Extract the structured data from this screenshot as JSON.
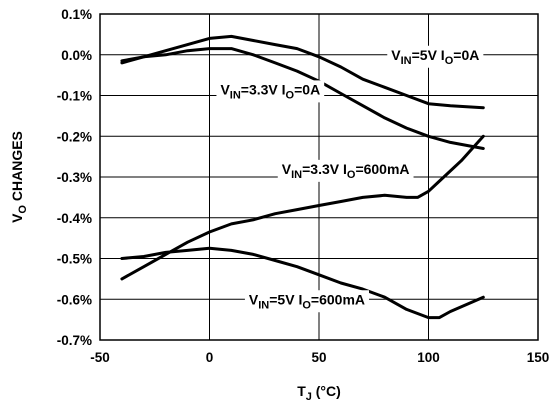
{
  "chart_data": {
    "type": "line",
    "title": "",
    "xlabel": {
      "main": "T",
      "sub": "J",
      "rest": " (°C)"
    },
    "ylabel": {
      "pre": "V",
      "sub": "O",
      "rest": " CHANGES"
    },
    "xlim": [
      -50,
      150
    ],
    "ylim": [
      -0.7,
      0.1
    ],
    "grid": true,
    "legend": "none",
    "x_ticks": [
      {
        "value": -50,
        "label": "-50"
      },
      {
        "value": 0,
        "label": "0"
      },
      {
        "value": 50,
        "label": "50"
      },
      {
        "value": 100,
        "label": "100"
      },
      {
        "value": 150,
        "label": "150"
      }
    ],
    "y_ticks": [
      {
        "value": 0.1,
        "label": "0.1%"
      },
      {
        "value": 0.0,
        "label": "0.0%"
      },
      {
        "value": -0.1,
        "label": "-0.1%"
      },
      {
        "value": -0.2,
        "label": "-0.2%"
      },
      {
        "value": -0.3,
        "label": "-0.3%"
      },
      {
        "value": -0.4,
        "label": "-0.4%"
      },
      {
        "value": -0.5,
        "label": "-0.5%"
      },
      {
        "value": -0.6,
        "label": "-0.6%"
      },
      {
        "value": -0.7,
        "label": "-0.7%"
      }
    ],
    "series": [
      {
        "label": {
          "a": "V",
          "a_sub": "IN",
          "b": "=5V I",
          "b_sub": "O",
          "c": "=0A"
        },
        "label_x": 83,
        "label_y": 0.0,
        "points": [
          [
            -40,
            -0.02
          ],
          [
            -30,
            -0.005
          ],
          [
            -20,
            0.01
          ],
          [
            -10,
            0.025
          ],
          [
            0,
            0.04
          ],
          [
            10,
            0.045
          ],
          [
            20,
            0.035
          ],
          [
            30,
            0.025
          ],
          [
            40,
            0.015
          ],
          [
            50,
            -0.005
          ],
          [
            60,
            -0.03
          ],
          [
            70,
            -0.06
          ],
          [
            80,
            -0.08
          ],
          [
            90,
            -0.1
          ],
          [
            100,
            -0.12
          ],
          [
            110,
            -0.125
          ],
          [
            125,
            -0.13
          ]
        ]
      },
      {
        "label": {
          "a": "V",
          "a_sub": "IN",
          "b": "=3.3V I",
          "b_sub": "O",
          "c": "=0A"
        },
        "label_x": 5,
        "label_y": -0.085,
        "points": [
          [
            -40,
            -0.015
          ],
          [
            -30,
            -0.005
          ],
          [
            -20,
            0.0
          ],
          [
            -10,
            0.01
          ],
          [
            0,
            0.015
          ],
          [
            10,
            0.015
          ],
          [
            20,
            0.0
          ],
          [
            30,
            -0.02
          ],
          [
            40,
            -0.04
          ],
          [
            50,
            -0.065
          ],
          [
            60,
            -0.095
          ],
          [
            70,
            -0.125
          ],
          [
            80,
            -0.155
          ],
          [
            90,
            -0.18
          ],
          [
            100,
            -0.2
          ],
          [
            110,
            -0.215
          ],
          [
            125,
            -0.23
          ]
        ]
      },
      {
        "label": {
          "a": "V",
          "a_sub": "IN",
          "b": "=3.3V I",
          "b_sub": "O",
          "c": "=600mA"
        },
        "label_x": 33,
        "label_y": -0.28,
        "points": [
          [
            -40,
            -0.55
          ],
          [
            -30,
            -0.52
          ],
          [
            -20,
            -0.49
          ],
          [
            -10,
            -0.46
          ],
          [
            0,
            -0.435
          ],
          [
            10,
            -0.415
          ],
          [
            20,
            -0.405
          ],
          [
            30,
            -0.39
          ],
          [
            40,
            -0.38
          ],
          [
            50,
            -0.37
          ],
          [
            60,
            -0.36
          ],
          [
            70,
            -0.35
          ],
          [
            80,
            -0.345
          ],
          [
            90,
            -0.35
          ],
          [
            95,
            -0.35
          ],
          [
            100,
            -0.335
          ],
          [
            105,
            -0.31
          ],
          [
            110,
            -0.285
          ],
          [
            115,
            -0.26
          ],
          [
            120,
            -0.23
          ],
          [
            125,
            -0.2
          ]
        ]
      },
      {
        "label": {
          "a": "V",
          "a_sub": "IN",
          "b": "=5V I",
          "b_sub": "O",
          "c": "=600mA"
        },
        "label_x": 18,
        "label_y": -0.6,
        "points": [
          [
            -40,
            -0.5
          ],
          [
            -30,
            -0.495
          ],
          [
            -20,
            -0.485
          ],
          [
            -10,
            -0.48
          ],
          [
            0,
            -0.475
          ],
          [
            10,
            -0.48
          ],
          [
            20,
            -0.49
          ],
          [
            30,
            -0.505
          ],
          [
            40,
            -0.52
          ],
          [
            50,
            -0.54
          ],
          [
            60,
            -0.56
          ],
          [
            70,
            -0.575
          ],
          [
            80,
            -0.595
          ],
          [
            90,
            -0.625
          ],
          [
            100,
            -0.645
          ],
          [
            105,
            -0.645
          ],
          [
            110,
            -0.63
          ],
          [
            125,
            -0.595
          ]
        ]
      }
    ]
  }
}
